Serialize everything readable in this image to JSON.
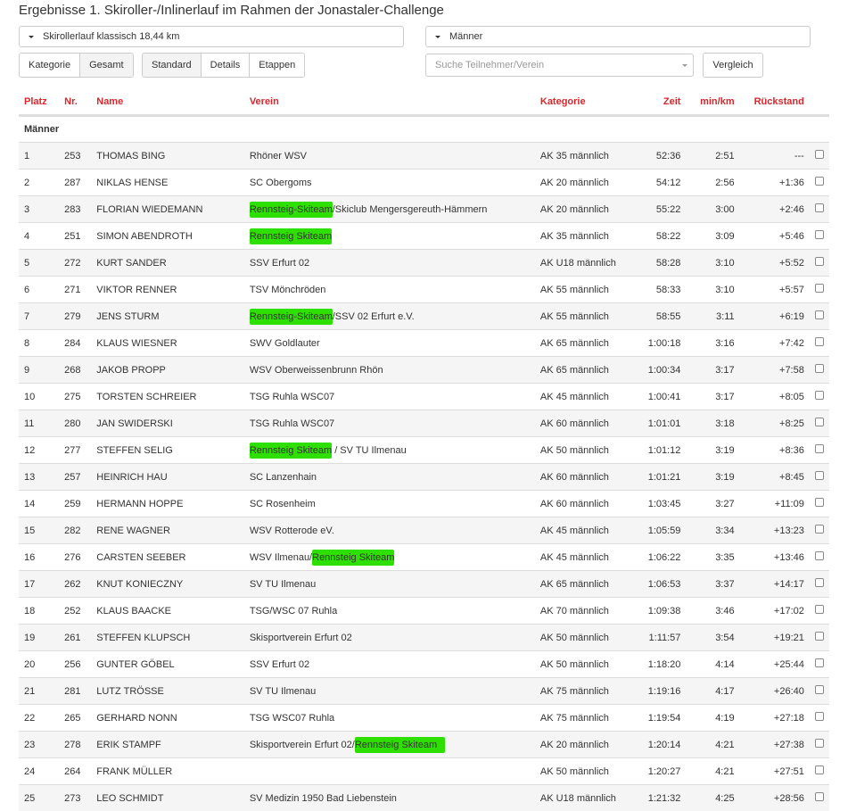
{
  "title": "Ergebnisse 1. Skiroller-/Inlinerlauf im Rahmen der Jonastaler-Challenge",
  "race_select": "Skirollerlauf klassisch 18,44 km",
  "category_select": "Männer",
  "view_buttons": [
    "Kategorie",
    "Gesamt"
  ],
  "mode_buttons": [
    "Standard",
    "Details",
    "Etappen"
  ],
  "search_placeholder": "Suche Teilnehmer/Verein",
  "compare_label": "Vergleich",
  "highlight_color": "#2ee000",
  "header_color": "#d9262c",
  "columns": [
    "Platz",
    "Nr.",
    "Name",
    "Verein",
    "Kategorie",
    "Zeit",
    "min/km",
    "Rückstand"
  ],
  "group": "Männer",
  "rows": [
    {
      "platz": "1",
      "nr": "253",
      "name": "THOMAS BING",
      "verein": [
        {
          "t": "Rhöner WSV"
        }
      ],
      "kat": "AK 35 männlich",
      "zeit": "52:36",
      "pace": "2:51",
      "rueck": "---"
    },
    {
      "platz": "2",
      "nr": "287",
      "name": "NIKLAS HENSE",
      "verein": [
        {
          "t": "SC Obergoms"
        }
      ],
      "kat": "AK 20 männlich",
      "zeit": "54:12",
      "pace": "2:56",
      "rueck": "+1:36"
    },
    {
      "platz": "3",
      "nr": "283",
      "name": "FLORIAN WIEDEMANN",
      "verein": [
        {
          "t": "Rennsteig-Skiteam",
          "h": true
        },
        {
          "t": "/Skiclub Mengersgereuth-Hämmern"
        }
      ],
      "kat": "AK 20 männlich",
      "zeit": "55:22",
      "pace": "3:00",
      "rueck": "+2:46"
    },
    {
      "platz": "4",
      "nr": "251",
      "name": "SIMON ABENDROTH",
      "verein": [
        {
          "t": "Rennsteig Skiteam",
          "h": true
        }
      ],
      "kat": "AK 35 männlich",
      "zeit": "58:22",
      "pace": "3:09",
      "rueck": "+5:46"
    },
    {
      "platz": "5",
      "nr": "272",
      "name": "KURT SANDER",
      "verein": [
        {
          "t": "SSV Erfurt 02"
        }
      ],
      "kat": "AK U18 männlich",
      "zeit": "58:28",
      "pace": "3:10",
      "rueck": "+5:52"
    },
    {
      "platz": "6",
      "nr": "271",
      "name": "VIKTOR RENNER",
      "verein": [
        {
          "t": "TSV Mönchröden"
        }
      ],
      "kat": "AK 55 männlich",
      "zeit": "58:33",
      "pace": "3:10",
      "rueck": "+5:57"
    },
    {
      "platz": "7",
      "nr": "279",
      "name": "JENS STURM",
      "verein": [
        {
          "t": "Rennsteig-Skiteam",
          "h": true
        },
        {
          "t": "/SSV 02 Erfurt e.V."
        }
      ],
      "kat": "AK 55 männlich",
      "zeit": "58:55",
      "pace": "3:11",
      "rueck": "+6:19"
    },
    {
      "platz": "8",
      "nr": "284",
      "name": "KLAUS WIESNER",
      "verein": [
        {
          "t": "SWV Goldlauter"
        }
      ],
      "kat": "AK 65 männlich",
      "zeit": "1:00:18",
      "pace": "3:16",
      "rueck": "+7:42"
    },
    {
      "platz": "9",
      "nr": "268",
      "name": "JAKOB PROPP",
      "verein": [
        {
          "t": "WSV Oberweissenbrunn Rhön"
        }
      ],
      "kat": "AK 65 männlich",
      "zeit": "1:00:34",
      "pace": "3:17",
      "rueck": "+7:58"
    },
    {
      "platz": "10",
      "nr": "275",
      "name": "TORSTEN SCHREIER",
      "verein": [
        {
          "t": "TSG Ruhla WSC07"
        }
      ],
      "kat": "AK 45 männlich",
      "zeit": "1:00:41",
      "pace": "3:17",
      "rueck": "+8:05"
    },
    {
      "platz": "11",
      "nr": "280",
      "name": "JAN SWIDERSKI",
      "verein": [
        {
          "t": "TSG Ruhla WSC07"
        }
      ],
      "kat": "AK 60 männlich",
      "zeit": "1:01:01",
      "pace": "3:18",
      "rueck": "+8:25"
    },
    {
      "platz": "12",
      "nr": "277",
      "name": "STEFFEN SELIG",
      "verein": [
        {
          "t": "Rennsteig Skiteam",
          "h": true
        },
        {
          "t": " / SV TU Ilmenau"
        }
      ],
      "kat": "AK 50 männlich",
      "zeit": "1:01:12",
      "pace": "3:19",
      "rueck": "+8:36"
    },
    {
      "platz": "13",
      "nr": "257",
      "name": "HEINRICH HAU",
      "verein": [
        {
          "t": "SC Lanzenhain"
        }
      ],
      "kat": "AK 60 männlich",
      "zeit": "1:01:21",
      "pace": "3:19",
      "rueck": "+8:45"
    },
    {
      "platz": "14",
      "nr": "259",
      "name": "HERMANN HOPPE",
      "verein": [
        {
          "t": "SC Rosenheim"
        }
      ],
      "kat": "AK 60 männlich",
      "zeit": "1:03:45",
      "pace": "3:27",
      "rueck": "+11:09"
    },
    {
      "platz": "15",
      "nr": "282",
      "name": "RENE WAGNER",
      "verein": [
        {
          "t": "WSV Rotterode eV."
        }
      ],
      "kat": "AK 45 männlich",
      "zeit": "1:05:59",
      "pace": "3:34",
      "rueck": "+13:23"
    },
    {
      "platz": "16",
      "nr": "276",
      "name": "CARSTEN SEEBER",
      "verein": [
        {
          "t": "WSV Ilmenau/"
        },
        {
          "t": "Rennsteig Skiteam",
          "h": true
        }
      ],
      "kat": "AK 45 männlich",
      "zeit": "1:06:22",
      "pace": "3:35",
      "rueck": "+13:46"
    },
    {
      "platz": "17",
      "nr": "262",
      "name": "KNUT KONIECZNY",
      "verein": [
        {
          "t": "SV TU Ilmenau"
        }
      ],
      "kat": "AK 65 männlich",
      "zeit": "1:06:53",
      "pace": "3:37",
      "rueck": "+14:17"
    },
    {
      "platz": "18",
      "nr": "252",
      "name": "KLAUS BAACKE",
      "verein": [
        {
          "t": "TSG/WSC 07 Ruhla"
        }
      ],
      "kat": "AK 70 männlich",
      "zeit": "1:09:38",
      "pace": "3:46",
      "rueck": "+17:02"
    },
    {
      "platz": "19",
      "nr": "261",
      "name": "STEFFEN KLUPSCH",
      "verein": [
        {
          "t": "Skisportverein Erfurt 02"
        }
      ],
      "kat": "AK 50 männlich",
      "zeit": "1:11:57",
      "pace": "3:54",
      "rueck": "+19:21"
    },
    {
      "platz": "20",
      "nr": "256",
      "name": "GUNTER GÖBEL",
      "verein": [
        {
          "t": "SSV Erfurt 02"
        }
      ],
      "kat": "AK 50 männlich",
      "zeit": "1:18:20",
      "pace": "4:14",
      "rueck": "+25:44"
    },
    {
      "platz": "21",
      "nr": "281",
      "name": "LUTZ TRÖSSE",
      "verein": [
        {
          "t": "SV TU Ilmenau"
        }
      ],
      "kat": "AK 75 männlich",
      "zeit": "1:19:16",
      "pace": "4:17",
      "rueck": "+26:40"
    },
    {
      "platz": "22",
      "nr": "265",
      "name": "GERHARD NONN",
      "verein": [
        {
          "t": "TSG WSC07 Ruhla"
        }
      ],
      "kat": "AK 75 männlich",
      "zeit": "1:19:54",
      "pace": "4:19",
      "rueck": "+27:18"
    },
    {
      "platz": "23",
      "nr": "278",
      "name": "ERIK STAMPF",
      "verein": [
        {
          "t": "Skisportverein Erfurt 02/"
        },
        {
          "t": "Rennsteig Skiteam   ",
          "h": true
        }
      ],
      "kat": "AK 20 männlich",
      "zeit": "1:20:14",
      "pace": "4:21",
      "rueck": "+27:38"
    },
    {
      "platz": "24",
      "nr": "264",
      "name": "FRANK MÜLLER",
      "verein": [],
      "kat": "AK 50 männlich",
      "zeit": "1:20:27",
      "pace": "4:21",
      "rueck": "+27:51"
    },
    {
      "platz": "25",
      "nr": "273",
      "name": "LEO SCHMIDT",
      "verein": [
        {
          "t": "SV Medizin 1950 Bad Liebenstein"
        }
      ],
      "kat": "AK U18 männlich",
      "zeit": "1:21:32",
      "pace": "4:25",
      "rueck": "+28:56"
    }
  ]
}
